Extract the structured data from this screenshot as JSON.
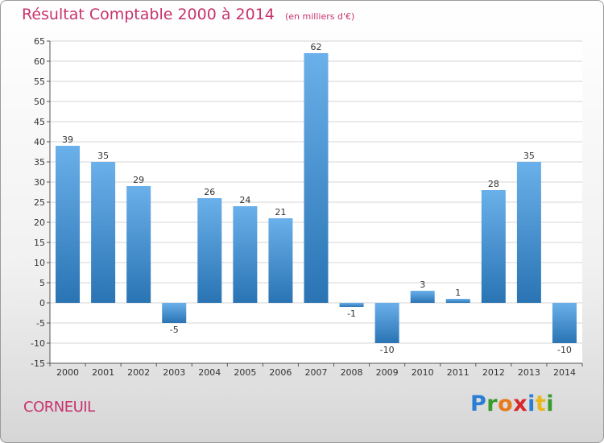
{
  "title": "Résultat Comptable 2000 à 2014",
  "subtitle": "(en milliers d'€)",
  "commune": "CORNEUIL",
  "logo": {
    "letters": [
      "P",
      "r",
      "o",
      "x",
      "i",
      "t",
      "i"
    ],
    "colors": [
      "#2a7fd4",
      "#3a9a2a",
      "#e87a1a",
      "#d9262c",
      "#2a7fd4",
      "#e8b81a",
      "#3a9a2a"
    ]
  },
  "colors": {
    "bar_top": "#6ab0ea",
    "bar_bottom": "#2a74b4",
    "title": "#c8326d"
  },
  "chart_data": {
    "type": "bar",
    "title": "Résultat Comptable 2000 à 2014",
    "subtitle": "(en milliers d'€)",
    "categories": [
      "2000",
      "2001",
      "2002",
      "2003",
      "2004",
      "2005",
      "2006",
      "2007",
      "2008",
      "2009",
      "2010",
      "2011",
      "2012",
      "2013",
      "2014"
    ],
    "values": [
      39,
      35,
      29,
      -5,
      26,
      24,
      21,
      62,
      -1,
      -10,
      3,
      1,
      28,
      35,
      -10
    ],
    "labels": [
      "39",
      "35",
      "29",
      "-5",
      "26",
      "24",
      "21",
      "62",
      "-1",
      "-10",
      "3",
      "1",
      "28",
      "35",
      "-10"
    ],
    "yticks": [
      "-15",
      "-10",
      "-5",
      "0",
      "5",
      "10",
      "15",
      "20",
      "25",
      "30",
      "35",
      "40",
      "45",
      "50",
      "55",
      "60",
      "65"
    ],
    "ylim": [
      -15,
      65
    ],
    "grid": true,
    "xlabel": "",
    "ylabel": ""
  }
}
